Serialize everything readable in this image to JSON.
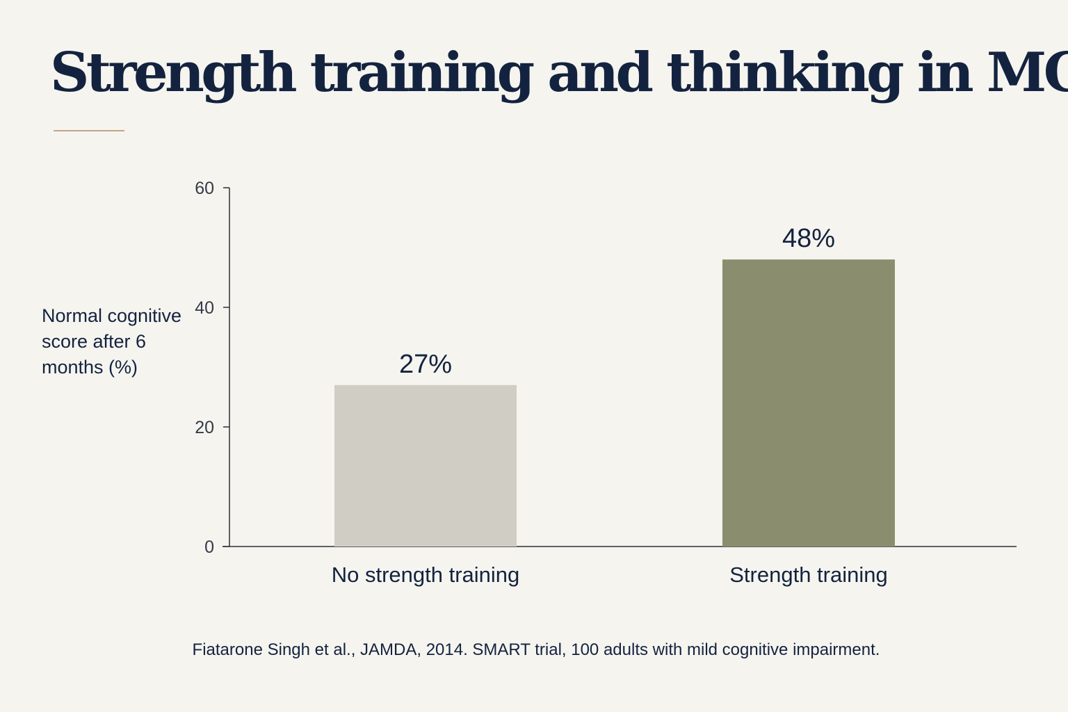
{
  "title": "Strength training and thinking in MCI",
  "source": "Fiatarone Singh et al., JAMDA, 2014. SMART trial, 100 adults with mild cognitive impairment.",
  "colors": {
    "background": "#f6f4ef",
    "text": "#13233f",
    "accent_rule": "#c3a585",
    "bar_control": "#d0cdc5",
    "bar_training": "#8a8e6e"
  },
  "chart_data": {
    "type": "bar",
    "title": "Strength training and thinking in MCI",
    "ylabel": "Normal cognitive score after 6 months (%)",
    "xlabel": "",
    "ylim": [
      0,
      60
    ],
    "yticks": [
      0,
      20,
      40,
      60
    ],
    "grid": false,
    "categories": [
      "No strength training",
      "Strength training"
    ],
    "values": [
      27,
      48
    ],
    "value_labels": [
      "27%",
      "48%"
    ],
    "colors": [
      "#d0cdc5",
      "#8a8e6e"
    ]
  }
}
